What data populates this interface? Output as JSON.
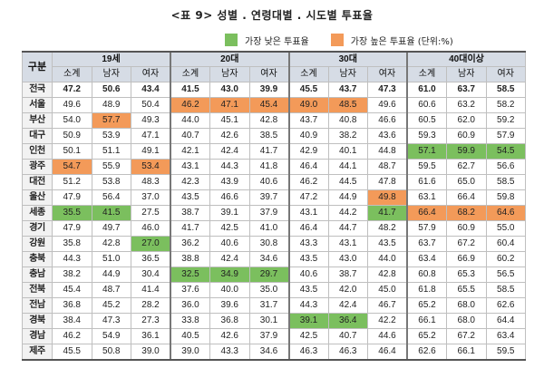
{
  "title": "<표 9> 성별 . 연령대별 . 시도별 투표율",
  "legend": {
    "low_label": "가장 낮은 투표율",
    "high_label": "가장 높은 투표율 (단위:%)",
    "low_color": "#7bbf5e",
    "high_color": "#f39a59"
  },
  "table": {
    "region_header": "구분",
    "groups": [
      "19세",
      "20대",
      "30대",
      "40대이상"
    ],
    "sub_headers": [
      "소계",
      "남자",
      "여자"
    ],
    "rows": [
      {
        "region": "전국",
        "values": [
          "47.2",
          "50.6",
          "43.4",
          "41.5",
          "43.0",
          "39.9",
          "45.5",
          "43.7",
          "47.3",
          "61.0",
          "63.7",
          "58.5"
        ],
        "hl": [
          "",
          "",
          "",
          "",
          "",
          "",
          "",
          "",
          "",
          "",
          "",
          ""
        ]
      },
      {
        "region": "서울",
        "values": [
          "49.6",
          "48.9",
          "50.4",
          "46.2",
          "47.1",
          "45.4",
          "49.0",
          "48.5",
          "49.6",
          "60.6",
          "63.2",
          "58.2"
        ],
        "hl": [
          "",
          "",
          "",
          "o",
          "o",
          "o",
          "o",
          "o",
          "",
          "",
          "",
          ""
        ]
      },
      {
        "region": "부산",
        "values": [
          "54.0",
          "57.7",
          "49.3",
          "44.0",
          "45.1",
          "42.8",
          "43.7",
          "40.8",
          "46.6",
          "60.5",
          "62.0",
          "59.2"
        ],
        "hl": [
          "",
          "o",
          "",
          "",
          "",
          "",
          "",
          "",
          "",
          "",
          "",
          ""
        ]
      },
      {
        "region": "대구",
        "values": [
          "50.9",
          "53.9",
          "47.1",
          "40.7",
          "42.6",
          "38.5",
          "40.9",
          "38.2",
          "43.6",
          "59.3",
          "60.9",
          "57.9"
        ],
        "hl": [
          "",
          "",
          "",
          "",
          "",
          "",
          "",
          "",
          "",
          "",
          "",
          ""
        ]
      },
      {
        "region": "인천",
        "values": [
          "50.1",
          "51.1",
          "49.1",
          "42.1",
          "42.4",
          "41.7",
          "42.9",
          "40.1",
          "44.8",
          "57.1",
          "59.9",
          "54.5"
        ],
        "hl": [
          "",
          "",
          "",
          "",
          "",
          "",
          "",
          "",
          "",
          "g",
          "g",
          "g"
        ]
      },
      {
        "region": "광주",
        "values": [
          "54.7",
          "55.9",
          "53.4",
          "43.1",
          "44.3",
          "41.8",
          "46.4",
          "44.1",
          "48.7",
          "59.5",
          "62.7",
          "56.6"
        ],
        "hl": [
          "o",
          "",
          "o",
          "",
          "",
          "",
          "",
          "",
          "",
          "",
          "",
          ""
        ]
      },
      {
        "region": "대전",
        "values": [
          "51.2",
          "53.8",
          "48.3",
          "42.3",
          "43.9",
          "40.6",
          "46.2",
          "44.5",
          "47.8",
          "61.6",
          "65.0",
          "58.5"
        ],
        "hl": [
          "",
          "",
          "",
          "",
          "",
          "",
          "",
          "",
          "",
          "",
          "",
          ""
        ]
      },
      {
        "region": "울산",
        "values": [
          "47.9",
          "56.4",
          "37.0",
          "43.5",
          "46.6",
          "39.7",
          "47.2",
          "44.9",
          "49.8",
          "63.1",
          "66.4",
          "59.8"
        ],
        "hl": [
          "",
          "",
          "",
          "",
          "",
          "",
          "",
          "",
          "o",
          "",
          "",
          ""
        ]
      },
      {
        "region": "세종",
        "values": [
          "35.5",
          "41.5",
          "27.5",
          "38.7",
          "39.1",
          "37.9",
          "43.1",
          "44.2",
          "41.7",
          "66.4",
          "68.2",
          "64.6"
        ],
        "hl": [
          "g",
          "g",
          "",
          "",
          "",
          "",
          "",
          "",
          "g",
          "o",
          "o",
          "o"
        ]
      },
      {
        "region": "경기",
        "values": [
          "47.9",
          "49.7",
          "46.0",
          "41.7",
          "42.5",
          "41.0",
          "46.4",
          "44.7",
          "48.2",
          "57.9",
          "60.9",
          "55.0"
        ],
        "hl": [
          "",
          "",
          "",
          "",
          "",
          "",
          "",
          "",
          "",
          "",
          "",
          ""
        ]
      },
      {
        "region": "강원",
        "values": [
          "35.8",
          "42.8",
          "27.0",
          "36.2",
          "40.6",
          "30.8",
          "43.3",
          "43.1",
          "43.5",
          "63.7",
          "67.2",
          "60.4"
        ],
        "hl": [
          "",
          "",
          "g",
          "",
          "",
          "",
          "",
          "",
          "",
          "",
          "",
          ""
        ]
      },
      {
        "region": "충북",
        "values": [
          "44.3",
          "51.0",
          "36.5",
          "38.8",
          "42.4",
          "34.6",
          "43.5",
          "43.0",
          "44.0",
          "63.4",
          "66.9",
          "60.2"
        ],
        "hl": [
          "",
          "",
          "",
          "",
          "",
          "",
          "",
          "",
          "",
          "",
          "",
          ""
        ]
      },
      {
        "region": "충남",
        "values": [
          "38.2",
          "44.9",
          "30.4",
          "32.5",
          "34.9",
          "29.7",
          "40.6",
          "38.7",
          "42.8",
          "60.8",
          "65.3",
          "56.5"
        ],
        "hl": [
          "",
          "",
          "",
          "g",
          "g",
          "g",
          "",
          "",
          "",
          "",
          "",
          ""
        ]
      },
      {
        "region": "전북",
        "values": [
          "45.4",
          "48.7",
          "41.4",
          "37.6",
          "40.0",
          "35.0",
          "43.5",
          "42.0",
          "45.0",
          "61.8",
          "65.5",
          "58.5"
        ],
        "hl": [
          "",
          "",
          "",
          "",
          "",
          "",
          "",
          "",
          "",
          "",
          "",
          ""
        ]
      },
      {
        "region": "전남",
        "values": [
          "36.8",
          "45.2",
          "28.2",
          "36.0",
          "39.6",
          "31.7",
          "44.3",
          "42.4",
          "46.7",
          "65.2",
          "68.0",
          "62.6"
        ],
        "hl": [
          "",
          "",
          "",
          "",
          "",
          "",
          "",
          "",
          "",
          "",
          "",
          ""
        ]
      },
      {
        "region": "경북",
        "values": [
          "38.4",
          "47.3",
          "27.3",
          "33.8",
          "36.8",
          "30.1",
          "39.1",
          "36.4",
          "42.2",
          "66.1",
          "68.0",
          "64.4"
        ],
        "hl": [
          "",
          "",
          "",
          "",
          "",
          "",
          "g",
          "g",
          "",
          "",
          "",
          ""
        ]
      },
      {
        "region": "경남",
        "values": [
          "46.2",
          "54.9",
          "36.1",
          "40.5",
          "42.6",
          "37.9",
          "42.5",
          "40.7",
          "44.6",
          "65.2",
          "67.2",
          "63.4"
        ],
        "hl": [
          "",
          "",
          "",
          "",
          "",
          "",
          "",
          "",
          "",
          "",
          "",
          ""
        ]
      },
      {
        "region": "제주",
        "values": [
          "45.5",
          "50.8",
          "39.0",
          "39.0",
          "43.3",
          "34.6",
          "46.3",
          "46.3",
          "46.4",
          "62.6",
          "66.1",
          "59.5"
        ],
        "hl": [
          "",
          "",
          "",
          "",
          "",
          "",
          "",
          "",
          "",
          "",
          "",
          ""
        ]
      }
    ]
  }
}
